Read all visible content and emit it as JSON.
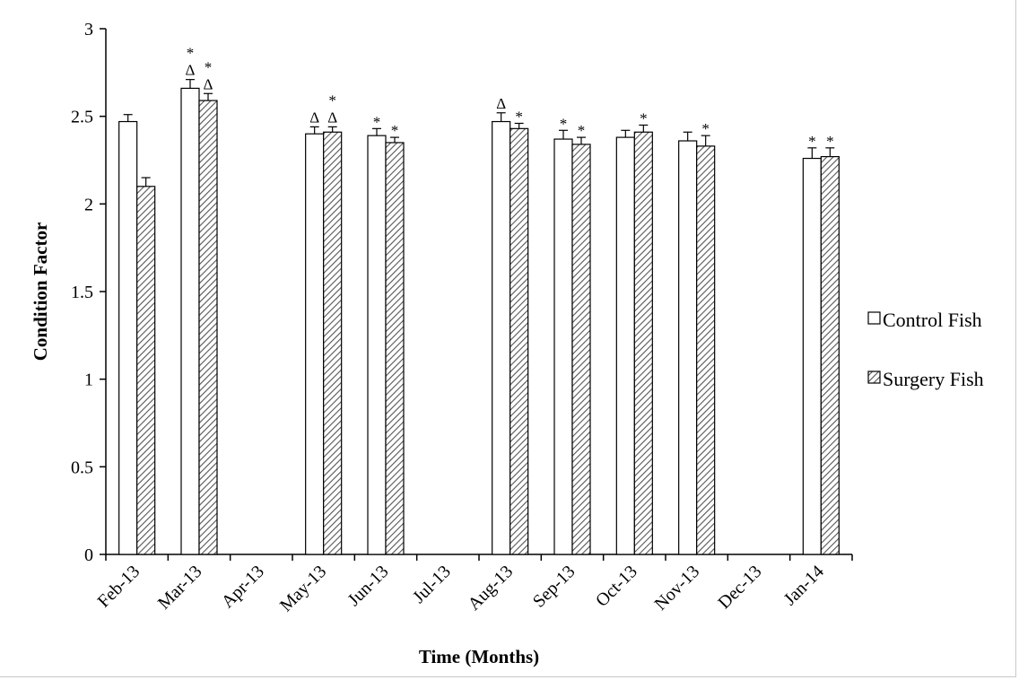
{
  "chart_data": {
    "type": "bar",
    "xlabel": "Time (Months)",
    "ylabel": "Condition Factor",
    "ylim": [
      0,
      3
    ],
    "yticks": [
      "0",
      "0.5",
      "1",
      "1.5",
      "2",
      "2.5",
      "3"
    ],
    "categories": [
      "Feb-13",
      "Mar-13",
      "Apr-13",
      "May-13",
      "Jun-13",
      "Jul-13",
      "Aug-13",
      "Sep-13",
      "Oct-13",
      "Nov-13",
      "Dec-13",
      "Jan-14"
    ],
    "series": [
      {
        "name": "Control Fish",
        "fill": "white",
        "values": [
          2.47,
          2.66,
          null,
          2.4,
          2.39,
          null,
          2.47,
          2.37,
          2.38,
          2.36,
          null,
          2.26
        ],
        "errors": [
          0.04,
          0.05,
          null,
          0.04,
          0.04,
          null,
          0.05,
          0.05,
          0.04,
          0.05,
          null,
          0.06
        ],
        "markers": [
          [],
          [
            "*",
            "Δ"
          ],
          [],
          [
            "Δ"
          ],
          [
            "*"
          ],
          [],
          [
            "Δ"
          ],
          [
            "*"
          ],
          [],
          [],
          [],
          [
            "*"
          ]
        ]
      },
      {
        "name": "Surgery Fish",
        "fill": "hatched",
        "values": [
          2.1,
          2.59,
          null,
          2.41,
          2.35,
          null,
          2.43,
          2.34,
          2.41,
          2.33,
          null,
          2.27
        ],
        "errors": [
          0.05,
          0.04,
          null,
          0.03,
          0.03,
          null,
          0.03,
          0.04,
          0.04,
          0.06,
          null,
          0.05
        ],
        "markers": [
          [],
          [
            "*",
            "Δ"
          ],
          [],
          [
            "*",
            "Δ"
          ],
          [
            "*"
          ],
          [],
          [
            "*"
          ],
          [
            "*"
          ],
          [
            "*"
          ],
          [
            "*"
          ],
          [],
          [
            "*"
          ]
        ]
      }
    ],
    "legend": {
      "position": "right",
      "entries": [
        "Control Fish",
        "Surgery Fish"
      ]
    },
    "grid": false
  }
}
